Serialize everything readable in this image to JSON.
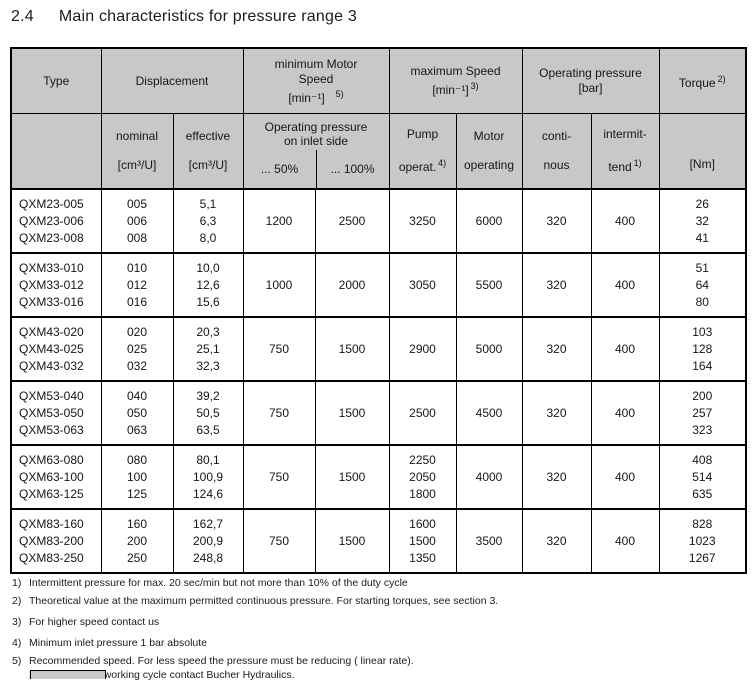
{
  "page": {
    "title_section": "2.4",
    "title_text": "Main characteristics for pressure range 3"
  },
  "table": {
    "header": {
      "top": [
        {
          "id": "type",
          "span": 1,
          "label_lines": [
            "Type"
          ]
        },
        {
          "id": "displacement",
          "span": 2,
          "label_lines": [
            "Displacement"
          ]
        },
        {
          "id": "min-motor-speed",
          "span": 2,
          "label_lines": [
            "minimum Motor",
            "Speed",
            "[min⁻¹]"
          ],
          "note": "5)"
        },
        {
          "id": "max-speed",
          "span": 2,
          "label_lines": [
            "maximum Speed",
            "[min⁻¹]"
          ],
          "note": "3)"
        },
        {
          "id": "operating-pressure",
          "span": 2,
          "label_lines": [
            "Operating pressure",
            "[bar]"
          ]
        },
        {
          "id": "torque",
          "span": 1,
          "label_lines": [
            "Torque"
          ],
          "note": "2)"
        }
      ],
      "sub": {
        "nominal_lines": [
          "nominal",
          "[cm³/U]"
        ],
        "effective_lines": [
          "effective",
          "[cm³/U]"
        ],
        "inlet_title_lines": [
          "Operating pressure",
          "on inlet side"
        ],
        "inlet_left": "... 50%",
        "inlet_right": "... 100%",
        "pump_lines": [
          "Pump",
          "operat."
        ],
        "pump_note": "4)",
        "motor_lines": [
          "Motor",
          "operating"
        ],
        "continuous_lines": [
          "conti-",
          "nous"
        ],
        "intermittent_lines": [
          "intermit-",
          "tend"
        ],
        "intermittent_note": "1)",
        "torque_unit_lines": [
          "[Nm]"
        ]
      }
    },
    "groups": [
      {
        "types": [
          "QXM23-005",
          "QXM23-006",
          "QXM23-008"
        ],
        "nominal": [
          "005",
          "006",
          "008"
        ],
        "effective": [
          "5,1",
          "6,3",
          "8,0"
        ],
        "min50": "1200",
        "min100": "2500",
        "pump": [
          "3250"
        ],
        "motor": "6000",
        "continuous": "320",
        "intermittent": "400",
        "torque": [
          "26",
          "32",
          "41"
        ]
      },
      {
        "types": [
          "QXM33-010",
          "QXM33-012",
          "QXM33-016"
        ],
        "nominal": [
          "010",
          "012",
          "016"
        ],
        "effective": [
          "10,0",
          "12,6",
          "15,6"
        ],
        "min50": "1000",
        "min100": "2000",
        "pump": [
          "3050"
        ],
        "motor": "5500",
        "continuous": "320",
        "intermittent": "400",
        "torque": [
          "51",
          "64",
          "80"
        ]
      },
      {
        "types": [
          "QXM43-020",
          "QXM43-025",
          "QXM43-032"
        ],
        "nominal": [
          "020",
          "025",
          "032"
        ],
        "effective": [
          "20,3",
          "25,1",
          "32,3"
        ],
        "min50": "750",
        "min100": "1500",
        "pump": [
          "2900"
        ],
        "motor": "5000",
        "continuous": "320",
        "intermittent": "400",
        "torque": [
          "103",
          "128",
          "164"
        ]
      },
      {
        "types": [
          "QXM53-040",
          "QXM53-050",
          "QXM53-063"
        ],
        "nominal": [
          "040",
          "050",
          "063"
        ],
        "effective": [
          "39,2",
          "50,5",
          "63,5"
        ],
        "min50": "750",
        "min100": "1500",
        "pump": [
          "2500"
        ],
        "motor": "4500",
        "continuous": "320",
        "intermittent": "400",
        "torque": [
          "200",
          "257",
          "323"
        ]
      },
      {
        "types": [
          "QXM63-080",
          "QXM63-100",
          "QXM63-125"
        ],
        "nominal": [
          "080",
          "100",
          "125"
        ],
        "effective": [
          "80,1",
          "100,9",
          "124,6"
        ],
        "min50": "750",
        "min100": "1500",
        "pump": [
          "2250",
          "2050",
          "1800"
        ],
        "motor": "4000",
        "continuous": "320",
        "intermittent": "400",
        "torque": [
          "408",
          "514",
          "635"
        ]
      },
      {
        "types": [
          "QXM83-160",
          "QXM83-200",
          "QXM83-250"
        ],
        "nominal": [
          "160",
          "200",
          "250"
        ],
        "effective": [
          "162,7",
          "200,9",
          "248,8"
        ],
        "min50": "750",
        "min100": "1500",
        "pump": [
          "1600",
          "1500",
          "1350"
        ],
        "motor": "3500",
        "continuous": "320",
        "intermittent": "400",
        "torque": [
          "828",
          "1023",
          "1267"
        ]
      }
    ]
  },
  "footnotes": [
    {
      "num": "1)",
      "lines": [
        "Intermittent pressure for max. 20 sec/min but not more than 10% of the duty cycle"
      ]
    },
    {
      "num": "2)",
      "lines": [
        "Theoretical value at the maximum permitted continuous pressure. For starting torques, see section 3."
      ]
    },
    {
      "num": "3)",
      "lines": [
        "For higher speed contact us"
      ]
    },
    {
      "num": "4)",
      "lines": [
        "Minimum inlet pressure 1 bar absolute"
      ]
    },
    {
      "num": "5)",
      "lines": [
        "Recommended speed. For less speed the pressure must be reducing ( linear rate).",
        "For customized working cycle contact Bucher Hydraulics."
      ]
    }
  ],
  "colors": {
    "header_bg": "#c8c8c8",
    "border": "#000000",
    "text": "#1b1b1b"
  }
}
